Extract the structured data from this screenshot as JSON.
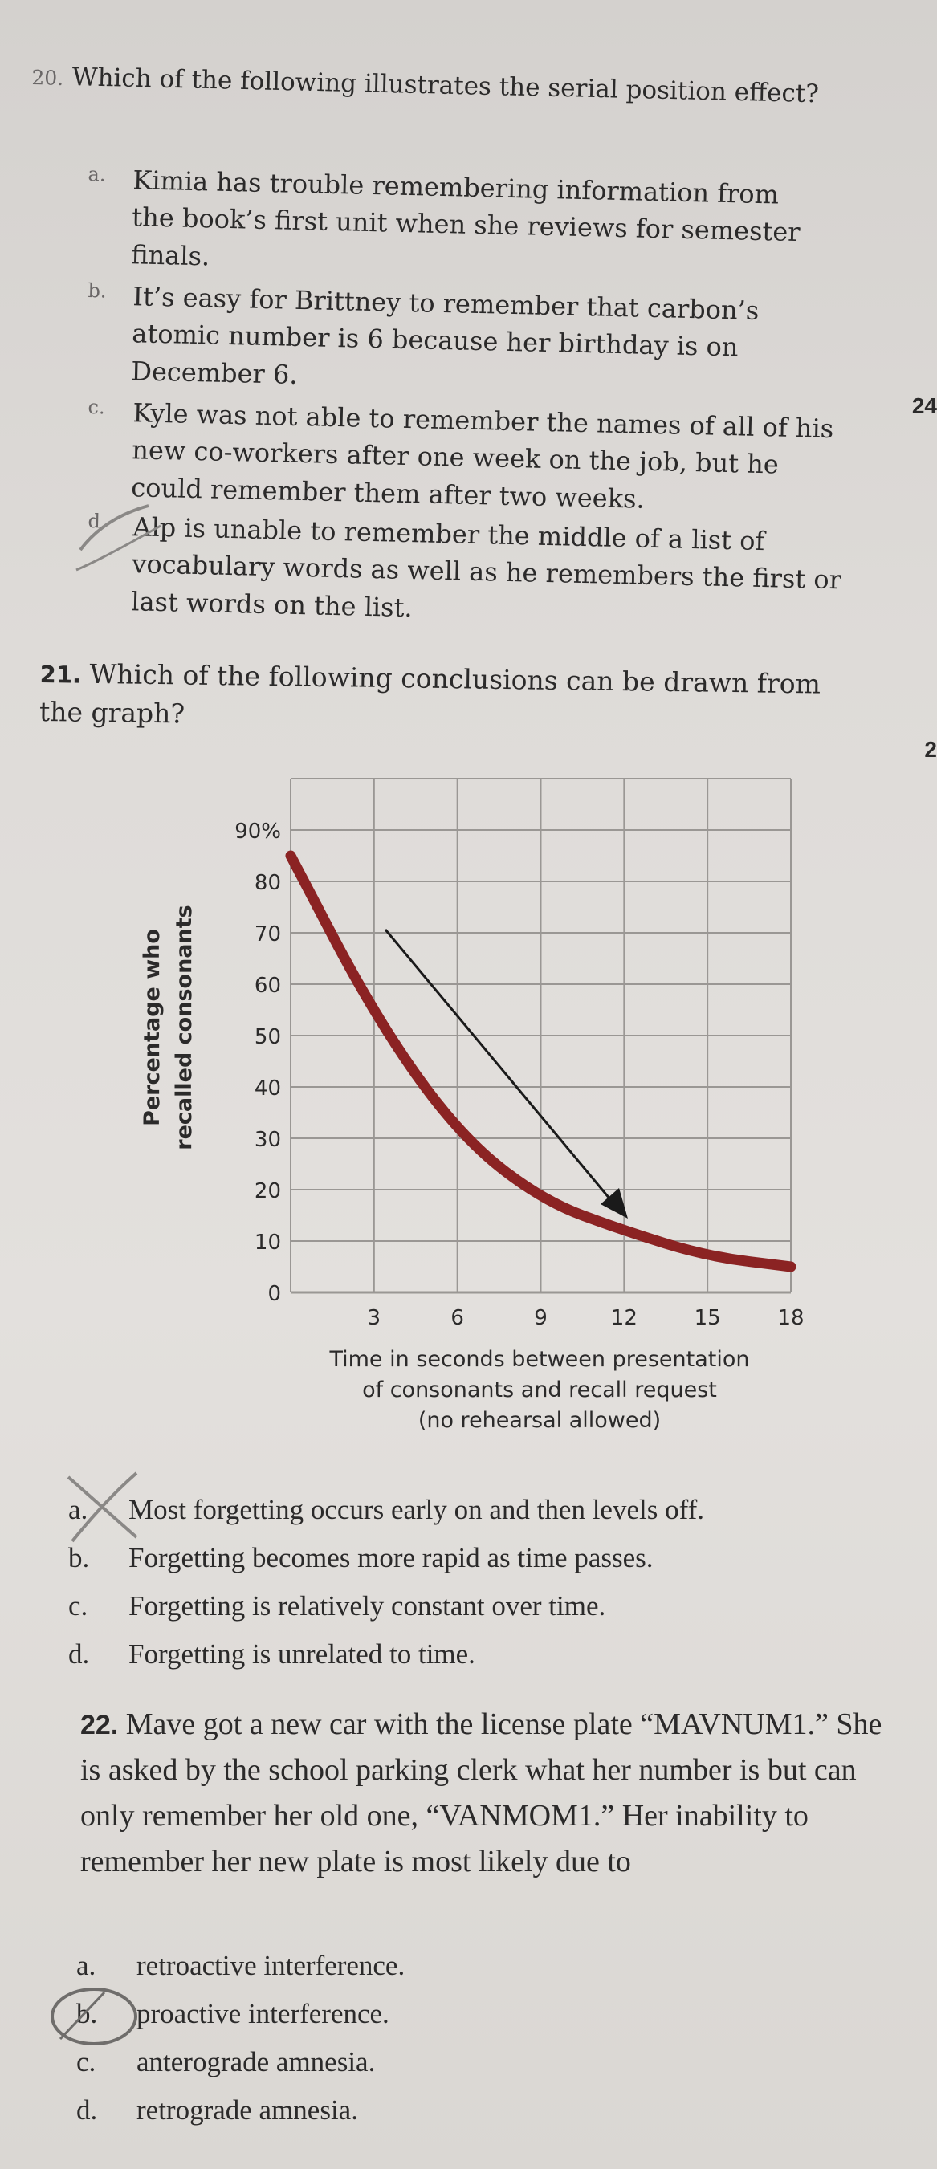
{
  "q20": {
    "number": "20.",
    "question": "Which of the following illustrates the serial position effect?",
    "options": [
      {
        "letter": "a.",
        "text": "Kimia has trouble remembering information from the book’s first unit when she reviews for semester finals."
      },
      {
        "letter": "b.",
        "text": "It’s easy for Brittney to remember that carbon’s atomic number is 6 because her birthday is on December 6."
      },
      {
        "letter": "c.",
        "text": "Kyle was not able to remember the names of all of his new co-workers after one week on the job, but he could remember them after two weeks."
      },
      {
        "letter": "d.",
        "text": "Alp is unable to remember the middle of a list of vocabulary words as well as he remembers the first or last words on the list."
      }
    ]
  },
  "q21": {
    "number": "21.",
    "question": "Which of the following conclusions can be drawn from the graph?",
    "options": [
      {
        "letter": "a.",
        "text": "Most forgetting occurs early on and then levels off."
      },
      {
        "letter": "b.",
        "text": "Forgetting becomes more rapid as time passes."
      },
      {
        "letter": "c.",
        "text": "Forgetting is relatively constant over time."
      },
      {
        "letter": "d.",
        "text": "Forgetting is unrelated to time."
      }
    ]
  },
  "q22": {
    "number": "22.",
    "question": "Mave got a new car with the license plate “MAVNUM1.” She is asked by the school parking clerk what her number is but can only remember her old one, “VANMOM1.” Her inability to remember her new plate is most likely due to",
    "options": [
      {
        "letter": "a.",
        "text": "retroactive interference."
      },
      {
        "letter": "b.",
        "text": "proactive interference."
      },
      {
        "letter": "c.",
        "text": "anterograde amnesia."
      },
      {
        "letter": "d.",
        "text": "retrograde amnesia."
      }
    ]
  },
  "edge_marks": [
    "24",
    "2"
  ],
  "chart_data": {
    "type": "line",
    "ylabel_line1": "Percentage who",
    "ylabel_line2": "recalled consonants",
    "xlabel_line1": "Time in seconds between presentation",
    "xlabel_line2": "of consonants and recall request",
    "xlabel_line3": "(no rehearsal allowed)",
    "y_ticks": [
      "0",
      "10",
      "20",
      "30",
      "40",
      "50",
      "60",
      "70",
      "80",
      "90%"
    ],
    "x_ticks": [
      "3",
      "6",
      "9",
      "12",
      "15",
      "18"
    ],
    "xlim": [
      0,
      18
    ],
    "ylim": [
      0,
      100
    ],
    "grid": true,
    "series": [
      {
        "x": [
          0,
          3,
          6,
          9,
          12,
          15,
          18
        ],
        "y": [
          85,
          54,
          31,
          18,
          12,
          7,
          5
        ]
      }
    ],
    "colors": {
      "series": "#8b2323",
      "grid": "#9a9794",
      "arrow": "#1a1a1a"
    }
  }
}
